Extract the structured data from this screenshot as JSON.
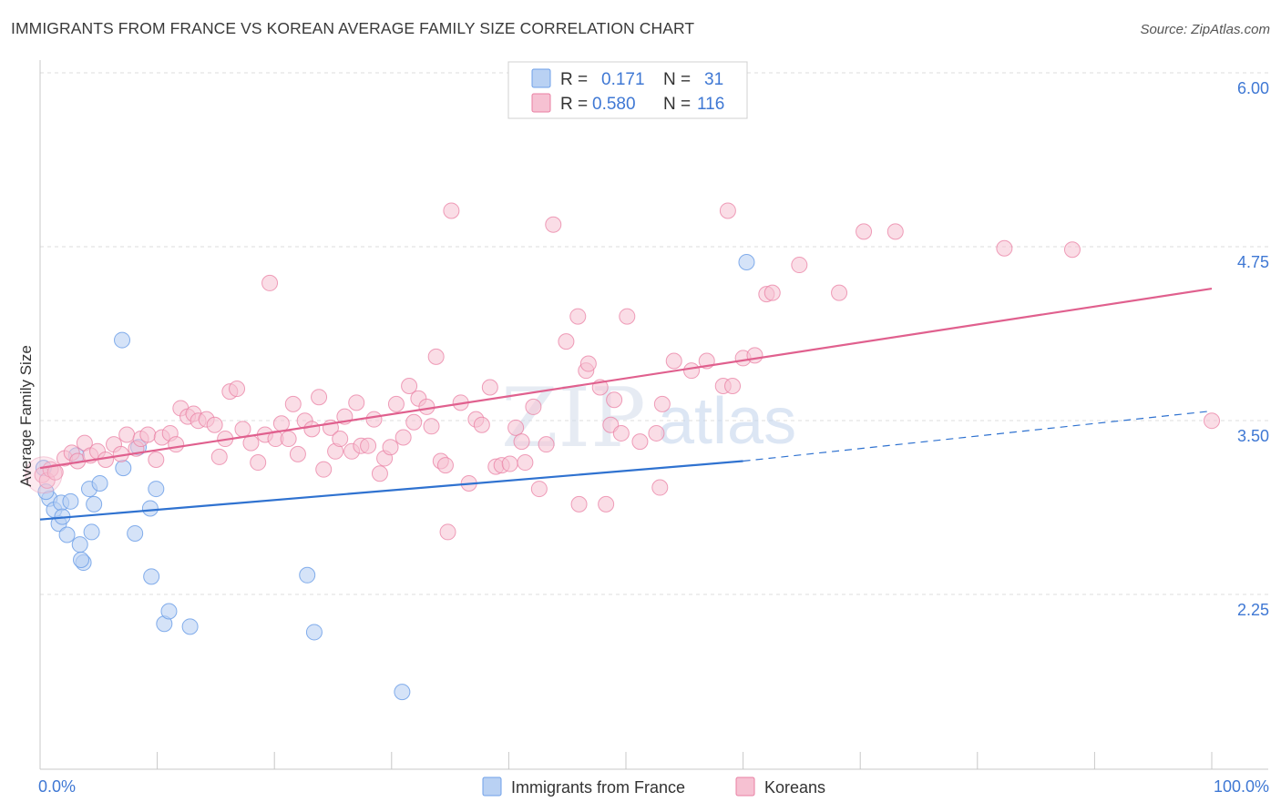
{
  "header": {
    "title": "IMMIGRANTS FROM FRANCE VS KOREAN AVERAGE FAMILY SIZE CORRELATION CHART",
    "source": "Source: ZipAtlas.com"
  },
  "watermark": {
    "zip": "ZIP",
    "atlas": "atlas"
  },
  "colors": {
    "france": "#6fa0e8",
    "france_fill": "#b9d1f3",
    "korean": "#e97fa3",
    "korean_fill": "#f6c1d2",
    "france_line": "#2f72d0",
    "korean_line": "#e0608e",
    "tick_text": "#3f78d4",
    "grid": "#dcdcdc"
  },
  "legend": {
    "rows": [
      {
        "r_label": "R =",
        "r_value": "0.171",
        "n_label": "N =",
        "n_value": "31"
      },
      {
        "r_label": "R =",
        "r_value": "0.580",
        "n_label": "N =",
        "n_value": "116"
      }
    ]
  },
  "bottom_legend": {
    "items": [
      "Immigrants from France",
      "Koreans"
    ]
  },
  "chart_data": {
    "type": "scatter",
    "title": "IMMIGRANTS FROM FRANCE VS KOREAN AVERAGE FAMILY SIZE CORRELATION CHART",
    "xlabel": "",
    "ylabel": "Average Family Size",
    "xlim": [
      0,
      100
    ],
    "ylim": [
      1.0,
      6.25
    ],
    "x_tick_labels": [
      "0.0%",
      "100.0%"
    ],
    "y_ticks": [
      2.25,
      3.5,
      4.75,
      6.0
    ],
    "y_tick_labels": [
      "2.25",
      "3.50",
      "4.75",
      "6.00"
    ],
    "grid": "horizontal dashed",
    "legend_position": "top-center",
    "series": [
      {
        "name": "Immigrants from France",
        "R": 0.171,
        "N": 31,
        "trend": {
          "x0": 0,
          "y0": 2.9,
          "x1": 60,
          "y1": 3.32,
          "dashed_to_x": 100,
          "dashed_to_y": 3.68
        },
        "points": [
          [
            0.3,
            3.27
          ],
          [
            0.8,
            3.05
          ],
          [
            1.2,
            2.97
          ],
          [
            1.8,
            3.02
          ],
          [
            1.6,
            2.87
          ],
          [
            1.9,
            2.92
          ],
          [
            2.3,
            2.79
          ],
          [
            2.6,
            3.03
          ],
          [
            3.4,
            2.72
          ],
          [
            3.1,
            3.36
          ],
          [
            3.7,
            2.59
          ],
          [
            3.5,
            2.61
          ],
          [
            4.2,
            3.12
          ],
          [
            4.4,
            2.81
          ],
          [
            4.6,
            3.01
          ],
          [
            5.1,
            3.16
          ],
          [
            7.0,
            4.19
          ],
          [
            7.1,
            3.27
          ],
          [
            8.1,
            2.8
          ],
          [
            8.4,
            3.42
          ],
          [
            9.4,
            2.98
          ],
          [
            9.5,
            2.49
          ],
          [
            9.9,
            3.12
          ],
          [
            10.6,
            2.15
          ],
          [
            11.0,
            2.24
          ],
          [
            12.8,
            2.13
          ],
          [
            22.8,
            2.5
          ],
          [
            23.4,
            2.09
          ],
          [
            30.9,
            1.66
          ],
          [
            60.3,
            4.75
          ],
          [
            0.5,
            3.1
          ]
        ]
      },
      {
        "name": "Koreans",
        "R": 0.58,
        "N": 116,
        "trend": {
          "x0": 0,
          "y0": 3.27,
          "x1": 100,
          "y1": 4.56
        },
        "points": [
          [
            0.2,
            3.22
          ],
          [
            0.6,
            3.18
          ],
          [
            0.9,
            3.26
          ],
          [
            1.3,
            3.24
          ],
          [
            2.1,
            3.34
          ],
          [
            2.7,
            3.38
          ],
          [
            3.2,
            3.32
          ],
          [
            3.8,
            3.45
          ],
          [
            4.3,
            3.36
          ],
          [
            4.9,
            3.39
          ],
          [
            5.6,
            3.33
          ],
          [
            6.3,
            3.44
          ],
          [
            6.9,
            3.37
          ],
          [
            7.4,
            3.51
          ],
          [
            8.2,
            3.41
          ],
          [
            8.6,
            3.48
          ],
          [
            9.2,
            3.51
          ],
          [
            9.9,
            3.33
          ],
          [
            10.4,
            3.49
          ],
          [
            11.1,
            3.52
          ],
          [
            11.6,
            3.44
          ],
          [
            12.0,
            3.7
          ],
          [
            12.6,
            3.64
          ],
          [
            13.1,
            3.66
          ],
          [
            13.5,
            3.61
          ],
          [
            14.2,
            3.62
          ],
          [
            14.9,
            3.58
          ],
          [
            15.3,
            3.35
          ],
          [
            15.8,
            3.48
          ],
          [
            16.2,
            3.82
          ],
          [
            16.8,
            3.84
          ],
          [
            17.3,
            3.55
          ],
          [
            18.0,
            3.45
          ],
          [
            18.6,
            3.31
          ],
          [
            19.2,
            3.51
          ],
          [
            19.6,
            4.6
          ],
          [
            20.1,
            3.48
          ],
          [
            20.6,
            3.59
          ],
          [
            21.2,
            3.48
          ],
          [
            21.6,
            3.73
          ],
          [
            22.0,
            3.37
          ],
          [
            22.6,
            3.61
          ],
          [
            23.2,
            3.55
          ],
          [
            23.8,
            3.78
          ],
          [
            24.2,
            3.26
          ],
          [
            24.8,
            3.56
          ],
          [
            25.2,
            3.39
          ],
          [
            25.6,
            3.48
          ],
          [
            26.0,
            3.64
          ],
          [
            26.6,
            3.39
          ],
          [
            27.0,
            3.74
          ],
          [
            27.4,
            3.43
          ],
          [
            28.0,
            3.43
          ],
          [
            28.5,
            3.62
          ],
          [
            29.0,
            3.23
          ],
          [
            29.4,
            3.34
          ],
          [
            29.9,
            3.42
          ],
          [
            30.4,
            3.73
          ],
          [
            31.0,
            3.49
          ],
          [
            31.5,
            3.86
          ],
          [
            31.9,
            3.6
          ],
          [
            32.3,
            3.77
          ],
          [
            33.0,
            3.71
          ],
          [
            33.4,
            3.57
          ],
          [
            33.8,
            4.07
          ],
          [
            34.2,
            3.32
          ],
          [
            34.6,
            3.29
          ],
          [
            35.1,
            5.12
          ],
          [
            35.9,
            3.74
          ],
          [
            36.6,
            3.16
          ],
          [
            37.2,
            3.62
          ],
          [
            37.7,
            3.58
          ],
          [
            38.4,
            3.85
          ],
          [
            38.9,
            3.28
          ],
          [
            39.4,
            3.29
          ],
          [
            40.1,
            3.3
          ],
          [
            40.6,
            3.56
          ],
          [
            41.1,
            3.46
          ],
          [
            41.4,
            3.31
          ],
          [
            42.1,
            3.71
          ],
          [
            42.6,
            3.12
          ],
          [
            43.2,
            3.44
          ],
          [
            43.8,
            5.02
          ],
          [
            44.9,
            4.18
          ],
          [
            45.9,
            4.36
          ],
          [
            46.0,
            3.01
          ],
          [
            46.6,
            3.97
          ],
          [
            46.8,
            4.02
          ],
          [
            47.8,
            3.85
          ],
          [
            48.3,
            3.01
          ],
          [
            48.7,
            3.58
          ],
          [
            49.0,
            3.76
          ],
          [
            49.6,
            3.52
          ],
          [
            50.1,
            4.36
          ],
          [
            52.9,
            3.13
          ],
          [
            51.2,
            3.46
          ],
          [
            52.6,
            3.52
          ],
          [
            53.1,
            3.73
          ],
          [
            54.1,
            4.04
          ],
          [
            56.9,
            4.04
          ],
          [
            55.6,
            3.97
          ],
          [
            58.3,
            3.86
          ],
          [
            59.1,
            3.86
          ],
          [
            58.7,
            5.12
          ],
          [
            60.0,
            4.06
          ],
          [
            61.0,
            4.08
          ],
          [
            62.0,
            4.52
          ],
          [
            62.5,
            4.53
          ],
          [
            64.8,
            4.73
          ],
          [
            68.2,
            4.53
          ],
          [
            70.3,
            4.97
          ],
          [
            73.0,
            4.97
          ],
          [
            82.3,
            4.85
          ],
          [
            88.1,
            4.84
          ],
          [
            100.0,
            3.61
          ],
          [
            34.8,
            2.81
          ]
        ]
      }
    ]
  }
}
